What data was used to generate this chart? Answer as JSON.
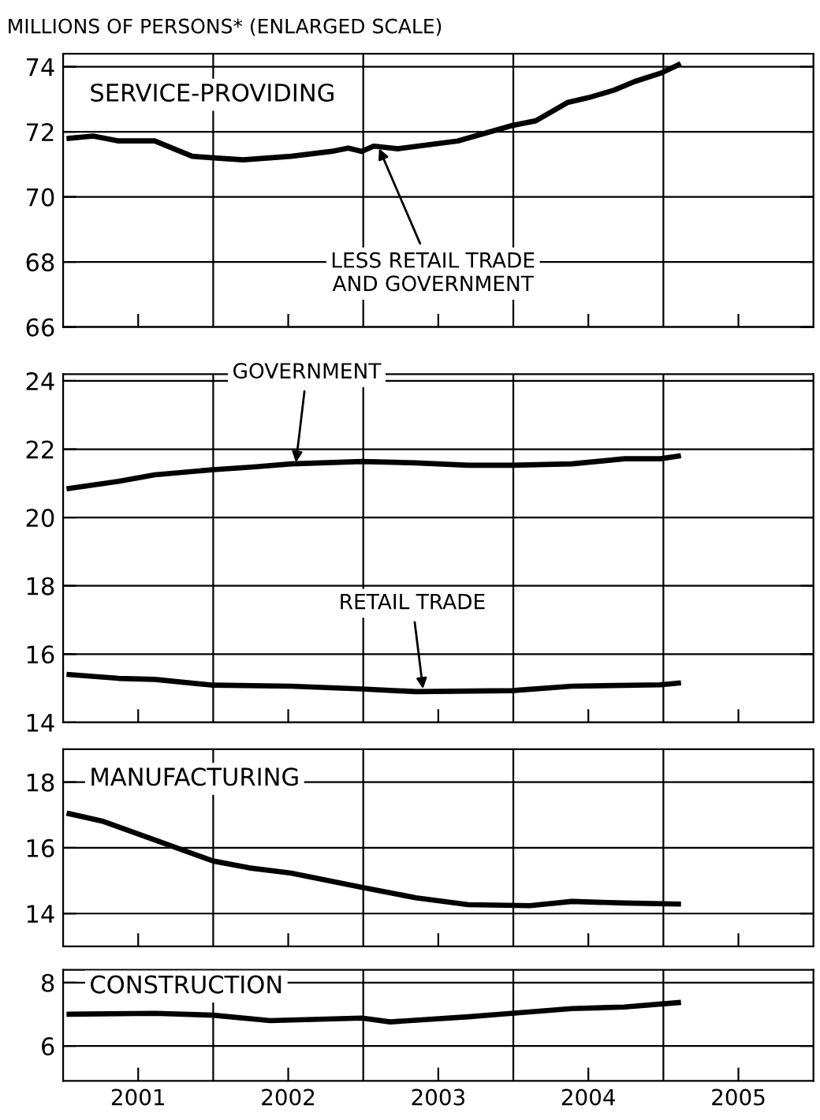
{
  "chart_data": [
    {
      "type": "line",
      "title": "SERVICE-PROVIDING",
      "ylabel": "MILLIONS OF PERSONS* (ENLARGED SCALE)",
      "xlim": [
        2001,
        2006
      ],
      "ylim": [
        66,
        74.4
      ],
      "yticks": [
        66,
        68,
        70,
        72,
        74
      ],
      "xticks": [
        {
          "value": 2001.5,
          "label": null
        },
        {
          "value": 2002.5,
          "label": null
        },
        {
          "value": 2003.5,
          "label": null
        },
        {
          "value": 2004.5,
          "label": null
        },
        {
          "value": 2005.5,
          "label": null
        }
      ],
      "tick_labels": "y",
      "grid": "y",
      "ref_lines": [
        {
          "axis": "x",
          "value": 2002
        },
        {
          "axis": "x",
          "value": 2003
        },
        {
          "axis": "x",
          "value": 2004
        },
        {
          "axis": "x",
          "value": 2005
        }
      ],
      "series": [
        {
          "color": "#000000",
          "x": [
            2001.04,
            2001.2,
            2001.37,
            2001.61,
            2001.86,
            2002.0,
            2002.2,
            2002.52,
            2002.79,
            2002.9,
            2002.99,
            2003.07,
            2003.23,
            2003.63,
            2003.99,
            2004.15,
            2004.36,
            2004.5,
            2004.67,
            2004.81,
            2004.98,
            2005.1
          ],
          "values": [
            71.8,
            71.87,
            71.72,
            71.72,
            71.25,
            71.2,
            71.14,
            71.25,
            71.4,
            71.5,
            71.4,
            71.56,
            71.48,
            71.72,
            72.19,
            72.34,
            72.9,
            73.05,
            73.28,
            73.55,
            73.8,
            74.06
          ]
        }
      ],
      "annotations": [
        {
          "text": "LESS RETAIL TRADE\nAND GOVERNMENT",
          "x": 2003.1,
          "y": 71.55
        }
      ]
    },
    {
      "type": "line",
      "xlim": [
        2001,
        2006
      ],
      "ylim": [
        14,
        24.2
      ],
      "yticks": [
        14,
        16,
        18,
        20,
        22,
        24
      ],
      "xticks": [
        {
          "value": 2001.5,
          "label": null
        },
        {
          "value": 2002.5,
          "label": null
        },
        {
          "value": 2003.5,
          "label": null
        },
        {
          "value": 2004.5,
          "label": null
        },
        {
          "value": 2005.5,
          "label": null
        }
      ],
      "tick_labels": "y",
      "grid": "y",
      "ref_lines": [
        {
          "axis": "x",
          "value": 2002
        },
        {
          "axis": "x",
          "value": 2003
        },
        {
          "axis": "x",
          "value": 2004
        },
        {
          "axis": "x",
          "value": 2005
        }
      ],
      "series": [
        {
          "color": "#000000",
          "x": [
            2001.04,
            2001.37,
            2001.61,
            2002.0,
            2002.27,
            2002.52,
            2002.99,
            2003.35,
            2003.7,
            2003.99,
            2004.39,
            2004.74,
            2004.98,
            2005.1
          ],
          "values": [
            20.85,
            21.06,
            21.25,
            21.4,
            21.48,
            21.57,
            21.64,
            21.6,
            21.53,
            21.53,
            21.57,
            21.72,
            21.72,
            21.8
          ]
        },
        {
          "color": "#000000",
          "x": [
            2001.04,
            2001.37,
            2001.61,
            2002.0,
            2002.52,
            2002.99,
            2003.35,
            2003.99,
            2004.39,
            2004.98,
            2005.1
          ],
          "values": [
            15.4,
            15.29,
            15.26,
            15.09,
            15.06,
            14.98,
            14.9,
            14.93,
            15.06,
            15.1,
            15.15
          ]
        }
      ],
      "annotations": [
        {
          "text": "GOVERNMENT",
          "x": 2002.55,
          "y": 21.55
        },
        {
          "text": "RETAIL TRADE",
          "x": 2003.4,
          "y": 14.92
        }
      ]
    },
    {
      "type": "line",
      "title": "MANUFACTURING",
      "xlim": [
        2001,
        2006
      ],
      "ylim": [
        13,
        19
      ],
      "yticks": [
        14,
        16,
        18
      ],
      "xticks": [
        {
          "value": 2001.5,
          "label": null
        },
        {
          "value": 2002.5,
          "label": null
        },
        {
          "value": 2003.5,
          "label": null
        },
        {
          "value": 2004.5,
          "label": null
        },
        {
          "value": 2005.5,
          "label": null
        }
      ],
      "tick_labels": "y",
      "grid": "y",
      "ref_lines": [
        {
          "axis": "x",
          "value": 2002
        },
        {
          "axis": "x",
          "value": 2003
        },
        {
          "axis": "x",
          "value": 2004
        },
        {
          "axis": "x",
          "value": 2005
        }
      ],
      "series": [
        {
          "color": "#000000",
          "x": [
            2001.04,
            2001.27,
            2001.61,
            2002.0,
            2002.24,
            2002.52,
            2002.99,
            2003.35,
            2003.7,
            2004.11,
            2004.39,
            2004.74,
            2005.1
          ],
          "values": [
            17.04,
            16.8,
            16.24,
            15.6,
            15.39,
            15.23,
            14.8,
            14.48,
            14.27,
            14.24,
            14.37,
            14.32,
            14.29
          ]
        }
      ]
    },
    {
      "type": "line",
      "title": "CONSTRUCTION",
      "xlim": [
        2001,
        2006
      ],
      "ylim": [
        4.9,
        8.4
      ],
      "yticks": [
        6,
        8
      ],
      "xticks": [
        {
          "value": 2001.5,
          "label": "2001"
        },
        {
          "value": 2002.5,
          "label": "2002"
        },
        {
          "value": 2003.5,
          "label": "2003"
        },
        {
          "value": 2004.5,
          "label": "2004"
        },
        {
          "value": 2005.5,
          "label": "2005"
        }
      ],
      "grid": "y",
      "ref_lines": [
        {
          "axis": "x",
          "value": 2002
        },
        {
          "axis": "x",
          "value": 2003
        },
        {
          "axis": "x",
          "value": 2004
        },
        {
          "axis": "x",
          "value": 2005
        }
      ],
      "series": [
        {
          "color": "#000000",
          "x": [
            2001.04,
            2001.61,
            2002.0,
            2002.38,
            2002.99,
            2003.18,
            2003.7,
            2003.99,
            2004.39,
            2004.74,
            2005.1
          ],
          "values": [
            7.0,
            7.03,
            6.97,
            6.8,
            6.88,
            6.76,
            6.92,
            7.03,
            7.18,
            7.23,
            7.37
          ]
        }
      ]
    }
  ]
}
